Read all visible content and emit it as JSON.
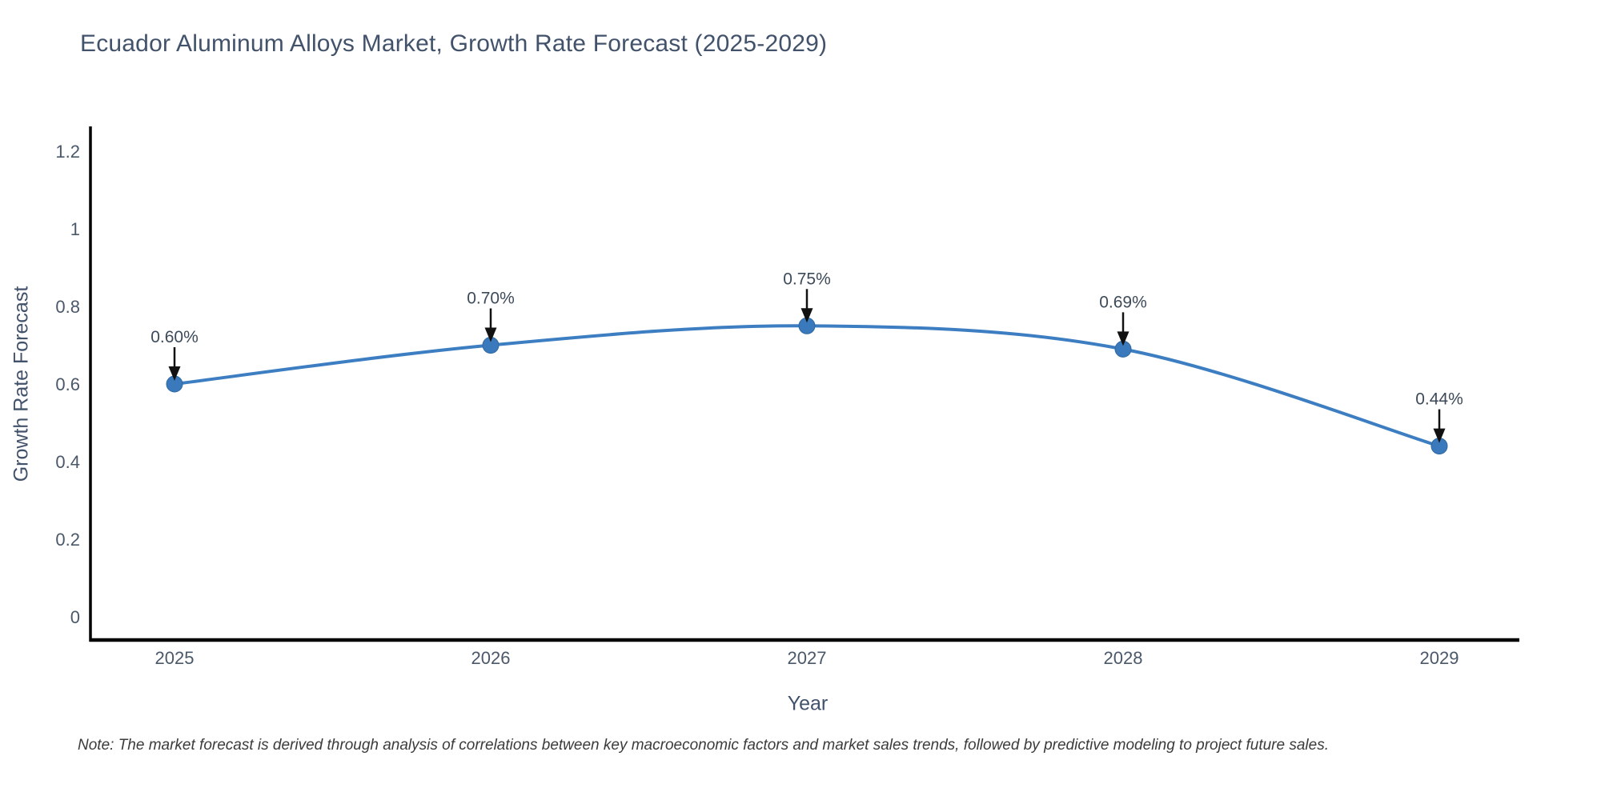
{
  "chart_data": {
    "type": "line",
    "title": "Ecuador Aluminum Alloys Market, Growth Rate Forecast (2025-2029)",
    "xlabel": "Year",
    "ylabel": "Growth Rate Forecast",
    "categories": [
      "2025",
      "2026",
      "2027",
      "2028",
      "2029"
    ],
    "values": [
      0.6,
      0.7,
      0.75,
      0.69,
      0.44
    ],
    "point_labels": [
      "0.60%",
      "0.70%",
      "0.75%",
      "0.69%",
      "0.44%"
    ],
    "ytick_values": [
      0,
      0.2,
      0.4,
      0.6,
      0.8,
      1,
      1.2
    ],
    "ytick_labels": [
      "0",
      "0.2",
      "0.4",
      "0.6",
      "0.8",
      "1",
      "1.2"
    ],
    "ylim": [
      -0.06,
      1.26
    ],
    "line_shape": "spline",
    "grid": false,
    "legend": "none",
    "colors": {
      "line": "#3c7ec1",
      "marker": "#3a7abc",
      "marker_edge": "#2e68a0",
      "axis": "#000000",
      "title": "#42526b",
      "tick": "#4a5869",
      "annotation": "#3d4a59",
      "arrow": "#111111",
      "note": "#3b3b3b"
    }
  },
  "note": "Note: The market forecast is derived through analysis of correlations between key macroeconomic factors and market sales trends, followed by predictive modeling to project future sales."
}
